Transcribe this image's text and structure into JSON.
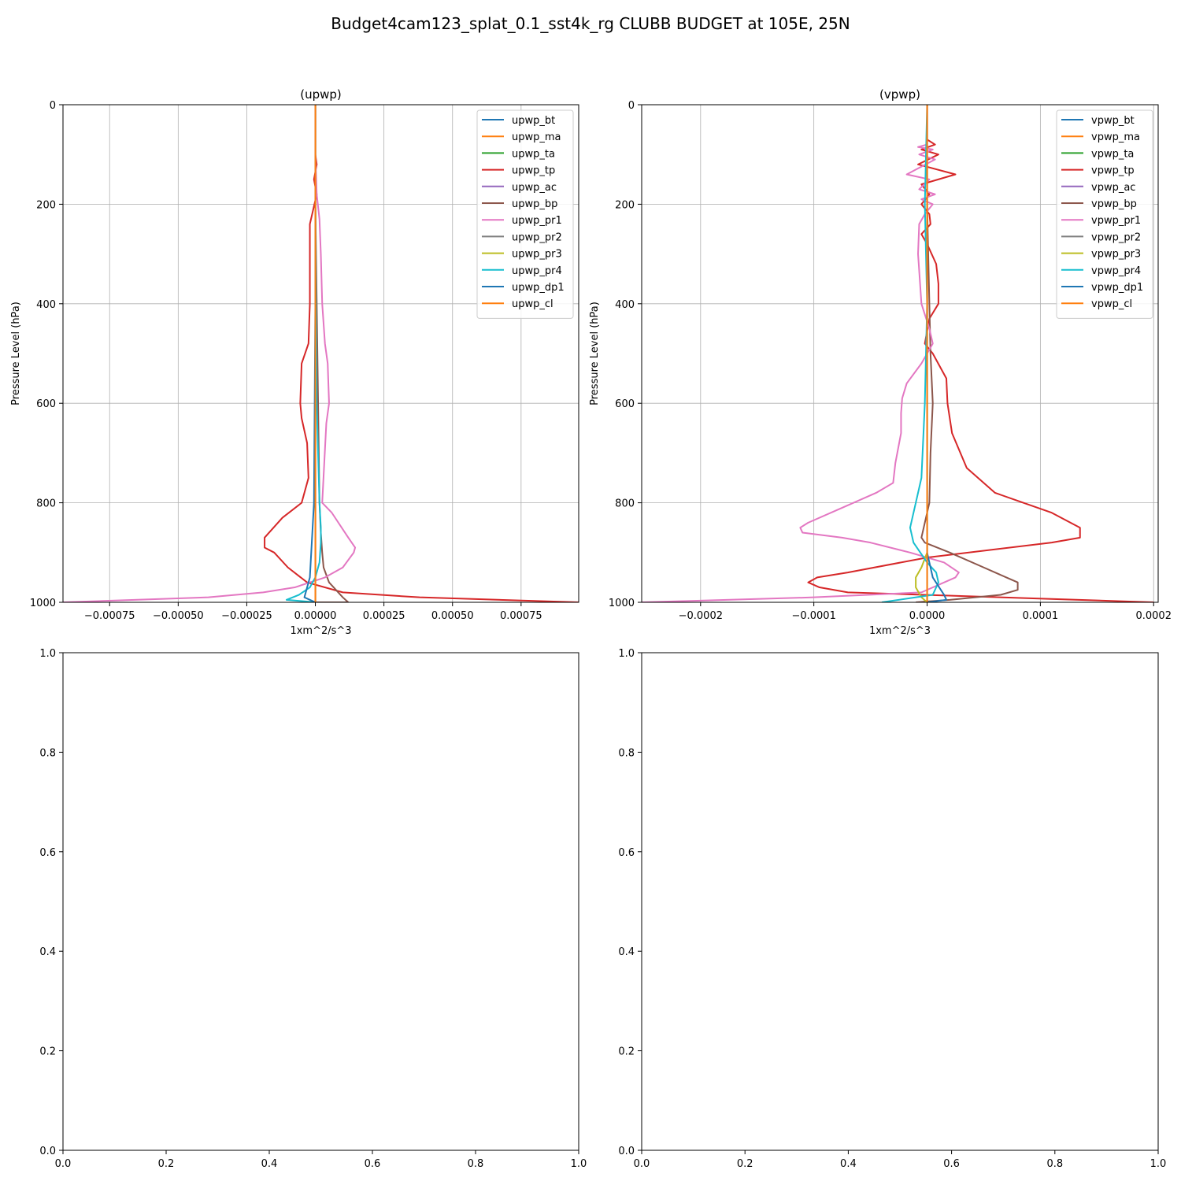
{
  "figure": {
    "title": "Budget4cam123_splat_0.1_sst4k_rg CLUBB BUDGET at 105E, 25N"
  },
  "chart_data": [
    {
      "type": "line",
      "title": "(upwp)",
      "xlabel": "1xm^2/s^3",
      "ylabel": "Pressure Level (hPa)",
      "xlim": [
        -0.00092,
        0.00096
      ],
      "ylim": [
        1000,
        0
      ],
      "y_inverted": true,
      "grid": true,
      "legend_position": "upper right",
      "xticks": [
        -0.00075,
        -0.0005,
        -0.00025,
        0,
        0.00025,
        0.0005,
        0.00075
      ],
      "xtick_labels": [
        "−0.00075",
        "−0.00050",
        "−0.00025",
        "0.00000",
        "0.00025",
        "0.00050",
        "0.00075"
      ],
      "yticks": [
        0,
        200,
        400,
        600,
        800,
        1000
      ],
      "ytick_labels": [
        "0",
        "200",
        "400",
        "600",
        "800",
        "1000"
      ],
      "series": [
        {
          "name": "upwp_bt",
          "color": "#1f77b4",
          "x": [
            0,
            0,
            0,
            0,
            0,
            0,
            0,
            0,
            0,
            0
          ],
          "y": [
            0,
            100,
            200,
            400,
            600,
            800,
            900,
            950,
            980,
            1000
          ]
        },
        {
          "name": "upwp_ma",
          "color": "#ff7f0e",
          "x": [
            0,
            0,
            0,
            0,
            0,
            0,
            0,
            0,
            0,
            0
          ],
          "y": [
            0,
            100,
            200,
            400,
            600,
            800,
            900,
            950,
            980,
            1000
          ]
        },
        {
          "name": "upwp_ta",
          "color": "#2ca02c",
          "x": [
            0,
            0,
            0,
            0,
            0,
            0,
            0,
            0,
            0,
            0
          ],
          "y": [
            0,
            100,
            200,
            400,
            600,
            800,
            900,
            950,
            980,
            1000
          ]
        },
        {
          "name": "upwp_tp",
          "color": "#d62728",
          "x": [
            0,
            0,
            5e-06,
            -5e-06,
            5e-06,
            -2e-05,
            -2e-05,
            -2e-05,
            -2.5e-05,
            -5e-05,
            -5.5e-05,
            -5e-05,
            -3e-05,
            -2.5e-05,
            -5e-05,
            -0.00012,
            -0.000185,
            -0.000185,
            -0.00015,
            -0.0001,
            -3e-05,
            0.0001,
            0.00038,
            0.00096
          ],
          "y": [
            0,
            100,
            120,
            150,
            180,
            240,
            300,
            400,
            480,
            520,
            600,
            630,
            680,
            750,
            800,
            830,
            870,
            890,
            900,
            930,
            960,
            980,
            990,
            1000
          ]
        },
        {
          "name": "upwp_ac",
          "color": "#9467bd",
          "x": [
            0,
            0,
            0,
            0,
            0,
            0,
            0,
            0,
            0,
            0
          ],
          "y": [
            0,
            100,
            200,
            400,
            600,
            800,
            900,
            950,
            980,
            1000
          ]
        },
        {
          "name": "upwp_bp",
          "color": "#8c564b",
          "x": [
            0,
            0,
            5e-06,
            1e-05,
            1.5e-05,
            2e-05,
            2.5e-05,
            3e-05,
            5e-05,
            0.0001,
            0.00012,
            0
          ],
          "y": [
            0,
            200,
            400,
            600,
            800,
            860,
            900,
            930,
            960,
            990,
            1000,
            1000
          ]
        },
        {
          "name": "upwp_pr1",
          "color": "#e377c2",
          "x": [
            0,
            0,
            5e-06,
            1.5e-05,
            2e-05,
            2.5e-05,
            3.5e-05,
            4.5e-05,
            5e-05,
            4e-05,
            2.5e-05,
            6e-05,
            0.00012,
            0.000145,
            0.00014,
            0.0001,
            3.5e-05,
            -7.5e-05,
            -0.00019,
            -0.00039,
            -0.00092
          ],
          "y": [
            0,
            100,
            180,
            230,
            300,
            400,
            480,
            520,
            600,
            640,
            800,
            820,
            870,
            890,
            900,
            930,
            950,
            970,
            980,
            990,
            1000
          ]
        },
        {
          "name": "upwp_pr2",
          "color": "#7f7f7f",
          "x": [
            0,
            0,
            0,
            0,
            0,
            0,
            0
          ],
          "y": [
            0,
            200,
            400,
            600,
            800,
            950,
            1000
          ]
        },
        {
          "name": "upwp_pr3",
          "color": "#bcbd22",
          "x": [
            0,
            0,
            0,
            0,
            0,
            0,
            0,
            0
          ],
          "y": [
            0,
            200,
            400,
            600,
            800,
            950,
            990,
            1000
          ]
        },
        {
          "name": "upwp_pr4",
          "color": "#17becf",
          "x": [
            0,
            0,
            2e-06,
            5e-06,
            1.5e-05,
            2e-05,
            2e-05,
            1.5e-05,
            0,
            -2e-05,
            -6e-05,
            -0.000105,
            0
          ],
          "y": [
            0,
            200,
            400,
            600,
            800,
            850,
            880,
            920,
            950,
            970,
            985,
            995,
            1000
          ]
        },
        {
          "name": "upwp_dp1",
          "color": "#1f77b4",
          "x": [
            0,
            0,
            0,
            -5e-06,
            -2e-05,
            -4e-05,
            0
          ],
          "y": [
            0,
            200,
            400,
            800,
            950,
            990,
            1000
          ]
        },
        {
          "name": "upwp_cl",
          "color": "#ff7f0e",
          "x": [
            0,
            0,
            0,
            0,
            0,
            0,
            0
          ],
          "y": [
            0,
            200,
            400,
            600,
            800,
            950,
            1000
          ]
        }
      ]
    },
    {
      "type": "line",
      "title": "(vpwp)",
      "xlabel": "1xm^2/s^3",
      "ylabel": "Pressure Level (hPa)",
      "xlim": [
        -0.000252,
        0.000204
      ],
      "ylim": [
        1000,
        0
      ],
      "y_inverted": true,
      "grid": true,
      "legend_position": "upper right",
      "xticks": [
        -0.0002,
        -0.0001,
        0,
        0.0001,
        0.0002
      ],
      "xtick_labels": [
        "−0.0002",
        "−0.0001",
        "0.0000",
        "0.0001",
        "0.0002"
      ],
      "yticks": [
        0,
        200,
        400,
        600,
        800,
        1000
      ],
      "ytick_labels": [
        "0",
        "200",
        "400",
        "600",
        "800",
        "1000"
      ],
      "series": [
        {
          "name": "vpwp_bt",
          "color": "#1f77b4",
          "x": [
            0,
            0,
            0,
            0,
            0,
            0,
            0,
            0,
            0,
            0
          ],
          "y": [
            0,
            100,
            200,
            400,
            600,
            800,
            900,
            950,
            980,
            1000
          ]
        },
        {
          "name": "vpwp_ma",
          "color": "#ff7f0e",
          "x": [
            0,
            0,
            0,
            0,
            0,
            0,
            0,
            0,
            0,
            0
          ],
          "y": [
            0,
            100,
            200,
            400,
            600,
            800,
            900,
            950,
            980,
            1000
          ]
        },
        {
          "name": "vpwp_ta",
          "color": "#2ca02c",
          "x": [
            0,
            0,
            0,
            0,
            0,
            0,
            0,
            0,
            0,
            0
          ],
          "y": [
            0,
            100,
            200,
            400,
            600,
            800,
            900,
            950,
            980,
            1000
          ]
        },
        {
          "name": "vpwp_tp",
          "color": "#d62728",
          "x": [
            0,
            0,
            7e-06,
            -5e-06,
            1e-05,
            -8e-06,
            2.5e-05,
            -5e-06,
            2e-06,
            -5e-06,
            2e-06,
            3e-06,
            -5e-06,
            0,
            8e-06,
            1e-05,
            1e-05,
            2e-06,
            -2e-06,
            5e-06,
            1.7e-05,
            1.8e-05,
            2.2e-05,
            3.5e-05,
            6e-05,
            0.00011,
            0.000135,
            0.000135,
            0.00011,
            0,
            -7e-05,
            -9.7e-05,
            -0.000105,
            -9.5e-05,
            -7e-05,
            0.0002
          ],
          "y": [
            0,
            70,
            80,
            90,
            100,
            120,
            140,
            160,
            180,
            200,
            220,
            240,
            260,
            280,
            320,
            360,
            400,
            430,
            480,
            500,
            550,
            600,
            660,
            730,
            780,
            820,
            850,
            870,
            880,
            910,
            940,
            950,
            960,
            970,
            980,
            1000
          ]
        },
        {
          "name": "vpwp_ac",
          "color": "#9467bd",
          "x": [
            0,
            0,
            0,
            0,
            0,
            0,
            0,
            0,
            0,
            0
          ],
          "y": [
            0,
            100,
            200,
            400,
            600,
            800,
            900,
            950,
            980,
            1000
          ]
        },
        {
          "name": "vpwp_bp",
          "color": "#8c564b",
          "x": [
            0,
            0,
            2e-06,
            3e-06,
            5e-06,
            3e-06,
            2e-06,
            -3e-06,
            -5e-06,
            -2e-06,
            2e-05,
            5e-05,
            7e-05,
            8e-05,
            8e-05,
            6.5e-05,
            2e-05,
            -1e-05
          ],
          "y": [
            0,
            200,
            400,
            500,
            600,
            700,
            800,
            850,
            870,
            880,
            900,
            930,
            950,
            960,
            975,
            985,
            995,
            1000
          ]
        },
        {
          "name": "vpwp_pr1",
          "color": "#e377c2",
          "x": [
            0,
            0,
            -8e-06,
            5e-06,
            -7e-06,
            7e-06,
            -1.8e-05,
            2e-06,
            -7e-06,
            7e-06,
            -5e-06,
            5e-06,
            -2e-06,
            -7e-06,
            -8e-06,
            -5e-06,
            2e-06,
            5e-06,
            -5e-06,
            -1.8e-05,
            -2.2e-05,
            -2.3e-05,
            -2.3e-05,
            -2.8e-05,
            -3e-05,
            -4.5e-05,
            -7.5e-05,
            -0.000105,
            -0.000112,
            -0.00011,
            -7.5e-05,
            -5e-05,
            -1.5e-05,
            1.5e-05,
            2.8e-05,
            2.5e-05,
            -5e-06,
            -0.0001,
            -0.000252
          ],
          "y": [
            0,
            80,
            85,
            90,
            100,
            110,
            140,
            150,
            170,
            180,
            190,
            200,
            220,
            240,
            300,
            400,
            450,
            480,
            520,
            560,
            590,
            620,
            660,
            720,
            760,
            780,
            810,
            840,
            850,
            860,
            870,
            880,
            900,
            920,
            940,
            950,
            980,
            990,
            1000
          ]
        },
        {
          "name": "vpwp_pr2",
          "color": "#7f7f7f",
          "x": [
            0,
            0,
            0,
            0,
            0,
            0,
            0
          ],
          "y": [
            0,
            200,
            400,
            600,
            800,
            950,
            1000
          ]
        },
        {
          "name": "vpwp_pr3",
          "color": "#bcbd22",
          "x": [
            0,
            0,
            0,
            0,
            0,
            -5e-06,
            -1e-05,
            -1e-05,
            -5e-06,
            0
          ],
          "y": [
            0,
            200,
            400,
            600,
            900,
            930,
            950,
            970,
            990,
            1000
          ]
        },
        {
          "name": "vpwp_pr4",
          "color": "#17becf",
          "x": [
            0,
            -2e-06,
            0,
            -2e-06,
            -5e-06,
            -1.5e-05,
            -1.2e-05,
            0,
            8e-06,
            1e-05,
            5e-06,
            -4e-05
          ],
          "y": [
            0,
            200,
            400,
            600,
            750,
            850,
            880,
            920,
            940,
            960,
            985,
            1000
          ]
        },
        {
          "name": "vpwp_dp1",
          "color": "#1f77b4",
          "x": [
            0,
            0,
            0,
            0,
            5e-06,
            1.5e-05,
            1.7e-05,
            0
          ],
          "y": [
            0,
            200,
            600,
            900,
            950,
            985,
            995,
            1000
          ]
        },
        {
          "name": "vpwp_cl",
          "color": "#ff7f0e",
          "x": [
            0,
            0,
            0,
            0,
            0,
            0,
            0
          ],
          "y": [
            0,
            200,
            400,
            600,
            800,
            950,
            1000
          ]
        }
      ]
    },
    {
      "type": "line",
      "title": "",
      "xlim": [
        0,
        1
      ],
      "ylim": [
        0,
        1
      ],
      "grid": false,
      "xticks": [
        0,
        0.2,
        0.4,
        0.6,
        0.8,
        1
      ],
      "xtick_labels": [
        "0.0",
        "0.2",
        "0.4",
        "0.6",
        "0.8",
        "1.0"
      ],
      "yticks": [
        0,
        0.2,
        0.4,
        0.6,
        0.8,
        1
      ],
      "ytick_labels": [
        "0.0",
        "0.2",
        "0.4",
        "0.6",
        "0.8",
        "1.0"
      ],
      "series": []
    },
    {
      "type": "line",
      "title": "",
      "xlim": [
        0,
        1
      ],
      "ylim": [
        0,
        1
      ],
      "grid": false,
      "xticks": [
        0,
        0.2,
        0.4,
        0.6,
        0.8,
        1
      ],
      "xtick_labels": [
        "0.0",
        "0.2",
        "0.4",
        "0.6",
        "0.8",
        "1.0"
      ],
      "yticks": [
        0,
        0.2,
        0.4,
        0.6,
        0.8,
        1
      ],
      "ytick_labels": [
        "0.0",
        "0.2",
        "0.4",
        "0.6",
        "0.8",
        "1.0"
      ],
      "series": []
    }
  ]
}
